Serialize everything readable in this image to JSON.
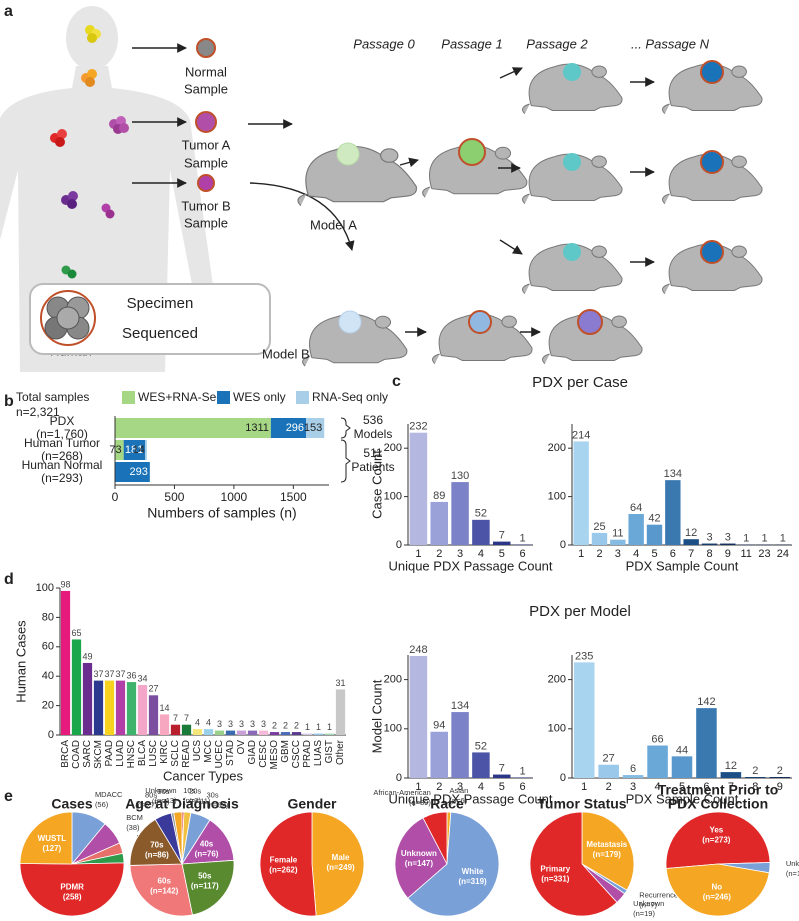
{
  "panel_labels": [
    "a",
    "b",
    "c",
    "d",
    "e"
  ],
  "diagram": {
    "samples": [
      [
        "Normal",
        "Sample"
      ],
      [
        "Tumor A",
        "Sample"
      ],
      [
        "Tumor B",
        "Sample"
      ]
    ],
    "passages": [
      "Passage 0",
      "Passage 1",
      "Passage 2",
      "... Passage N"
    ],
    "models": [
      "Model A",
      "Model B"
    ],
    "specimen": [
      "Specimen",
      "Sequenced"
    ],
    "human": "Human"
  },
  "chart_data": [
    {
      "type": "bar",
      "orientation": "horizontal",
      "stacked": true,
      "legend_title": [
        "Total samples",
        "n=2,321"
      ],
      "categories": [
        "PDX",
        "Human Tumor",
        "Human Normal"
      ],
      "category_counts": [
        "(n=1,760)",
        "(n=268)",
        "(n=293)"
      ],
      "series": [
        {
          "name": "WES+RNA-Seq",
          "color": "#a6d785",
          "values": [
            1311,
            73,
            null
          ]
        },
        {
          "name": "WES only",
          "color": "#1a73b8",
          "values": [
            296,
            181,
            293
          ]
        },
        {
          "name": "RNA-Seq only",
          "color": "#a9cfe8",
          "values": [
            153,
            14,
            null
          ]
        }
      ],
      "xlim": [
        0,
        1800
      ],
      "xticks": [
        0,
        500,
        1000,
        1500
      ],
      "xlabel": "Numbers of samples (n)",
      "annotations": [
        [
          "536",
          "Models"
        ],
        [
          "511",
          "Patients"
        ]
      ]
    },
    {
      "type": "bar",
      "title": "PDX per Case",
      "categories": [
        "1",
        "2",
        "3",
        "4",
        "5",
        "6"
      ],
      "values": [
        232,
        89,
        130,
        52,
        7,
        1
      ],
      "colors": [
        "#b4b8e0",
        "#9aa0d8",
        "#7c82c8",
        "#4c54a8",
        "#2c3688",
        "#1a2070"
      ],
      "ylim": [
        0,
        250
      ],
      "yticks": [
        0,
        100,
        200
      ],
      "ylabel": "Case Count",
      "xlabel": "Unique PDX Passage Count"
    },
    {
      "type": "bar",
      "categories": [
        "1",
        "2",
        "3",
        "4",
        "5",
        "6",
        "7",
        "8",
        "9",
        "11",
        "23",
        "24"
      ],
      "values": [
        214,
        25,
        11,
        64,
        42,
        134,
        12,
        3,
        3,
        1,
        1,
        1
      ],
      "colors": [
        "#a8d4f0",
        "#99c8ea",
        "#86bce2",
        "#6aa8d8",
        "#5898cc",
        "#3a78b0",
        "#1c4f86",
        "#183e70",
        "#15305c",
        "#122a50",
        "#10244a",
        "#0e1e40"
      ],
      "ylim": [
        0,
        250
      ],
      "yticks": [
        0,
        100,
        200
      ],
      "xlabel": "PDX Sample Count"
    },
    {
      "type": "bar",
      "title": "PDX per Model",
      "categories": [
        "1",
        "2",
        "3",
        "4",
        "5",
        "6"
      ],
      "values": [
        248,
        94,
        134,
        52,
        7,
        1
      ],
      "colors": [
        "#b4b8e0",
        "#9aa0d8",
        "#7c82c8",
        "#4c54a8",
        "#2c3688",
        "#1a2070"
      ],
      "ylim": [
        0,
        250
      ],
      "yticks": [
        0,
        100,
        200
      ],
      "ylabel": "Model Count",
      "xlabel": "Unique PDX Passage Count"
    },
    {
      "type": "bar",
      "categories": [
        "1",
        "2",
        "3",
        "4",
        "5",
        "6",
        "7",
        "8",
        "9"
      ],
      "values": [
        235,
        27,
        6,
        66,
        44,
        142,
        12,
        2,
        2
      ],
      "colors": [
        "#a8d4f0",
        "#99c8ea",
        "#86bce2",
        "#6aa8d8",
        "#5898cc",
        "#3a78b0",
        "#1c4f86",
        "#183e70",
        "#15305c"
      ],
      "ylim": [
        0,
        250
      ],
      "yticks": [
        0,
        100,
        200
      ],
      "xlabel": "PDX Sample Count"
    },
    {
      "type": "bar",
      "categories": [
        "BRCA",
        "COAD",
        "SARC",
        "SKCM",
        "PAAD",
        "LUAD",
        "HNSC",
        "BLCA",
        "LUSC",
        "KIRC",
        "SCLC",
        "READ",
        "UCS",
        "MCC",
        "UCEC",
        "STAD",
        "OV",
        "GIAD",
        "CESC",
        "MESO",
        "GBM",
        "CSCC",
        "PRAD",
        "LUAS",
        "GIST",
        "Other"
      ],
      "values": [
        98,
        65,
        49,
        37,
        37,
        37,
        36,
        34,
        27,
        14,
        7,
        7,
        4,
        4,
        3,
        3,
        3,
        3,
        3,
        2,
        2,
        2,
        1,
        1,
        1,
        31
      ],
      "colors": [
        "#e6197d",
        "#1aa64a",
        "#6a2c8e",
        "#2b3a8f",
        "#f7d21e",
        "#b23ea8",
        "#3fb36b",
        "#f3a6c8",
        "#7b4ea0",
        "#f7a8c0",
        "#b81e2b",
        "#1a7a3a",
        "#f5e67a",
        "#9bd0ea",
        "#9ad08a",
        "#3a6ab0",
        "#c8a0d8",
        "#8a6ab8",
        "#f6b8d8",
        "#7a3aa0",
        "#4a6ab8",
        "#5a3a90",
        "#d8c8e8",
        "#98c8e8",
        "#a8d8b8",
        "#c8c8c8"
      ],
      "ylim": [
        0,
        100
      ],
      "yticks": [
        0,
        20,
        40,
        60,
        80,
        100
      ],
      "ylabel": "Human Cases",
      "xlabel": "Cancer Types"
    },
    {
      "type": "pie",
      "title": "Cases",
      "categories": [
        "MDACC",
        "BCM",
        "HCI",
        "WI",
        "PDMR",
        "WUSTL"
      ],
      "values": [
        56,
        38,
        17,
        15,
        258,
        127
      ],
      "value_labels": [
        "(56)",
        "(38)",
        "(17)",
        "(15)",
        "(258)",
        "(127)"
      ],
      "colors": [
        "#7aa0d8",
        "#b04ea8",
        "#e8706a",
        "#2e9a4a",
        "#e02828",
        "#f5a623"
      ]
    },
    {
      "type": "pie",
      "title": "Age at Diagnosis",
      "categories": [
        "10s",
        "20s",
        "30s",
        "40s",
        "50s",
        "60s",
        "70s",
        "80s",
        "90s",
        "Unknown"
      ],
      "values": [
        3,
        11,
        32,
        76,
        117,
        142,
        86,
        27,
        4,
        13
      ],
      "value_labels": [
        "(n=3)",
        "(n=11)",
        "(n=32)",
        "(n=76)",
        "(n=117)",
        "(n=142)",
        "(n=86)",
        "(n=27)",
        "(n=4)",
        "(n=13)"
      ],
      "colors": [
        "#e02828",
        "#f0c040",
        "#7aa0d8",
        "#b04ea8",
        "#5a8a30",
        "#f07878",
        "#8b5a2b",
        "#3a3a9a",
        "#999999",
        "#f5a623"
      ]
    },
    {
      "type": "pie",
      "title": "Gender",
      "categories": [
        "Male",
        "Female"
      ],
      "values": [
        249,
        262
      ],
      "value_labels": [
        "(n=249)",
        "(n=262)"
      ],
      "colors": [
        "#f5a623",
        "#e02828"
      ]
    },
    {
      "type": "pie",
      "title": "Race",
      "categories": [
        "Asian",
        "White",
        "Unknown",
        "African-American"
      ],
      "values": [
        6,
        319,
        147,
        39
      ],
      "value_labels": [
        "(n=6)",
        "(n=319)",
        "(n=147)",
        "(n=39)"
      ],
      "colors": [
        "#f5a623",
        "#7aa0d8",
        "#b04ea8",
        "#e02828"
      ]
    },
    {
      "type": "pie",
      "title": "Tumor Status",
      "categories": [
        "Metastasis",
        "Recurrence",
        "Unknown",
        "Primary"
      ],
      "values": [
        179,
        7,
        19,
        331
      ],
      "value_labels": [
        "(n=179)",
        "(n=7)",
        "(n=19)",
        "(n=331)"
      ],
      "colors": [
        "#f5a623",
        "#7aa0d8",
        "#b04ea8",
        "#e02828"
      ]
    },
    {
      "type": "pie",
      "title": [
        "Treatment Prior to",
        "PDX Collection"
      ],
      "categories": [
        "Yes",
        "Unknown",
        "No"
      ],
      "values": [
        273,
        17,
        246
      ],
      "value_labels": [
        "(n=273)",
        "(n=17)",
        "(n=246)"
      ],
      "colors": [
        "#e02828",
        "#7aa0d8",
        "#f5a623"
      ]
    }
  ]
}
